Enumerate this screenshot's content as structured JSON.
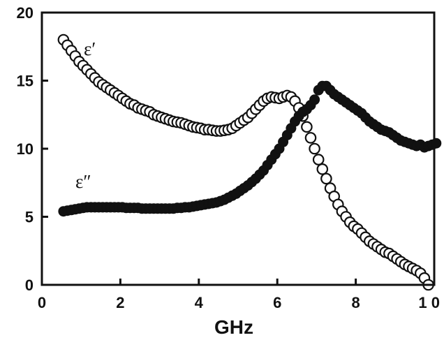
{
  "chart_data": {
    "type": "scatter",
    "title": "",
    "xlabel": "GHz",
    "ylabel": "",
    "xlim": [
      0,
      10
    ],
    "ylim": [
      0,
      20
    ],
    "x_ticks": [
      "0",
      "2",
      "4",
      "6",
      "8",
      "1 0"
    ],
    "y_ticks": [
      "0",
      "5",
      "10",
      "15",
      "20"
    ],
    "grid": false,
    "legend": "none",
    "series": [
      {
        "name": "ε′",
        "marker": "open-circle",
        "color": "#111111",
        "x": [
          0.55,
          0.65,
          0.75,
          0.85,
          0.95,
          1.05,
          1.15,
          1.25,
          1.35,
          1.45,
          1.55,
          1.65,
          1.75,
          1.85,
          1.95,
          2.05,
          2.15,
          2.25,
          2.35,
          2.45,
          2.55,
          2.65,
          2.75,
          2.85,
          2.95,
          3.05,
          3.15,
          3.25,
          3.35,
          3.45,
          3.55,
          3.65,
          3.75,
          3.85,
          3.95,
          4.05,
          4.15,
          4.25,
          4.35,
          4.45,
          4.55,
          4.65,
          4.75,
          4.85,
          4.95,
          5.05,
          5.15,
          5.25,
          5.35,
          5.45,
          5.55,
          5.65,
          5.75,
          5.85,
          5.95,
          6.05,
          6.15,
          6.25,
          6.35,
          6.45,
          6.55,
          6.65,
          6.75,
          6.85,
          6.95,
          7.05,
          7.15,
          7.25,
          7.35,
          7.45,
          7.55,
          7.65,
          7.75,
          7.85,
          7.95,
          8.05,
          8.15,
          8.25,
          8.35,
          8.45,
          8.55,
          8.65,
          8.75,
          8.85,
          8.95,
          9.05,
          9.15,
          9.25,
          9.35,
          9.45,
          9.55,
          9.65,
          9.75,
          9.85
        ],
        "y": [
          18.0,
          17.6,
          17.2,
          16.8,
          16.4,
          16.1,
          15.8,
          15.5,
          15.2,
          14.9,
          14.7,
          14.5,
          14.3,
          14.1,
          13.9,
          13.7,
          13.5,
          13.3,
          13.2,
          13.0,
          12.9,
          12.8,
          12.7,
          12.5,
          12.4,
          12.3,
          12.2,
          12.1,
          12.0,
          11.95,
          11.9,
          11.8,
          11.7,
          11.6,
          11.55,
          11.5,
          11.4,
          11.4,
          11.35,
          11.3,
          11.3,
          11.35,
          11.4,
          11.5,
          11.7,
          11.9,
          12.1,
          12.3,
          12.6,
          12.9,
          13.2,
          13.5,
          13.7,
          13.8,
          13.75,
          13.7,
          13.8,
          13.9,
          13.8,
          13.5,
          13.0,
          12.4,
          11.6,
          10.8,
          10.0,
          9.2,
          8.5,
          7.8,
          7.1,
          6.5,
          5.9,
          5.4,
          5.0,
          4.6,
          4.3,
          4.1,
          3.8,
          3.5,
          3.2,
          3.0,
          2.8,
          2.6,
          2.4,
          2.3,
          2.1,
          1.9,
          1.7,
          1.5,
          1.35,
          1.2,
          1.05,
          0.85,
          0.5,
          0.0
        ]
      },
      {
        "name": "ε″",
        "marker": "filled-circle",
        "color": "#111111",
        "x": [
          0.55,
          0.65,
          0.75,
          0.85,
          0.95,
          1.05,
          1.15,
          1.25,
          1.35,
          1.45,
          1.55,
          1.65,
          1.75,
          1.85,
          1.95,
          2.05,
          2.15,
          2.25,
          2.35,
          2.45,
          2.55,
          2.65,
          2.75,
          2.85,
          2.95,
          3.05,
          3.15,
          3.25,
          3.35,
          3.45,
          3.55,
          3.65,
          3.75,
          3.85,
          3.95,
          4.05,
          4.15,
          4.25,
          4.35,
          4.45,
          4.55,
          4.65,
          4.75,
          4.85,
          4.95,
          5.05,
          5.15,
          5.25,
          5.35,
          5.45,
          5.55,
          5.65,
          5.75,
          5.85,
          5.95,
          6.05,
          6.15,
          6.25,
          6.35,
          6.45,
          6.55,
          6.65,
          6.75,
          6.85,
          6.95,
          7.05,
          7.15,
          7.25,
          7.35,
          7.45,
          7.55,
          7.65,
          7.75,
          7.85,
          7.95,
          8.05,
          8.15,
          8.25,
          8.35,
          8.45,
          8.55,
          8.65,
          8.75,
          8.85,
          8.95,
          9.05,
          9.15,
          9.25,
          9.35,
          9.45,
          9.55,
          9.65,
          9.75,
          9.85,
          9.95,
          10.05
        ],
        "y": [
          5.4,
          5.45,
          5.5,
          5.55,
          5.6,
          5.65,
          5.7,
          5.7,
          5.7,
          5.7,
          5.7,
          5.7,
          5.7,
          5.7,
          5.7,
          5.7,
          5.65,
          5.65,
          5.65,
          5.65,
          5.6,
          5.6,
          5.6,
          5.6,
          5.6,
          5.6,
          5.6,
          5.6,
          5.6,
          5.65,
          5.65,
          5.7,
          5.7,
          5.75,
          5.8,
          5.85,
          5.9,
          5.95,
          6.0,
          6.05,
          6.15,
          6.25,
          6.4,
          6.55,
          6.7,
          6.9,
          7.1,
          7.3,
          7.55,
          7.8,
          8.1,
          8.4,
          8.8,
          9.2,
          9.6,
          10.0,
          10.5,
          11.0,
          11.5,
          12.0,
          12.4,
          12.7,
          12.9,
          13.2,
          13.6,
          14.3,
          14.6,
          14.6,
          14.3,
          14.0,
          13.8,
          13.6,
          13.4,
          13.2,
          13.0,
          12.8,
          12.6,
          12.3,
          12.0,
          11.8,
          11.6,
          11.4,
          11.3,
          11.2,
          11.0,
          10.8,
          10.6,
          10.5,
          10.4,
          10.3,
          10.2,
          10.3,
          10.1,
          10.2,
          10.3,
          10.4
        ]
      }
    ]
  }
}
